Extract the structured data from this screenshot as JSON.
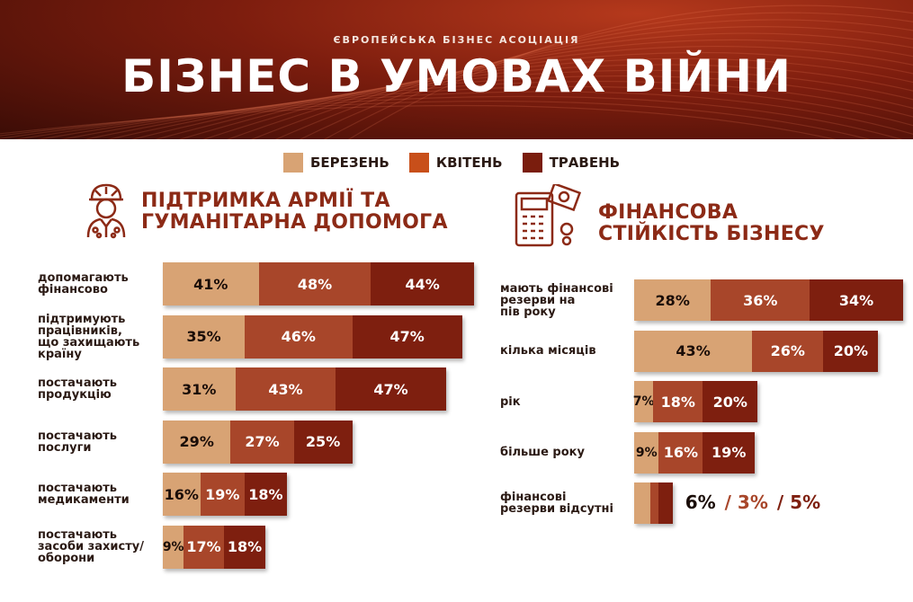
{
  "header": {
    "organization": "ЄВРОПЕЙСЬКА БІЗНЕС АСОЦІАЦІЯ",
    "title": "БІЗНЕС В УМОВАХ ВІЙНИ"
  },
  "legend": [
    {
      "label": "БЕРЕЗЕНЬ",
      "color": "#d8a374"
    },
    {
      "label": "КВІТЕНЬ",
      "color": "#c84f1a"
    },
    {
      "label": "ТРАВЕНЬ",
      "color": "#7a1d0d"
    }
  ],
  "colors": {
    "march": "#d8a374",
    "april": "#a8462a",
    "may": "#7e1f0f",
    "accent": "#8c2a16"
  },
  "sections": {
    "left": {
      "title_line1": "ПІДТРИМКА АРМІЇ ТА",
      "title_line2": "ГУМАНІТАРНА ДОПОМОГА",
      "icon": "soldier-icon"
    },
    "right": {
      "title_line1": "ФІНАНСОВА",
      "title_line2": "СТІЙКІСТЬ БІЗНЕСУ",
      "icon": "calculator-money-icon"
    }
  },
  "chart_data": [
    {
      "type": "bar",
      "stacked": true,
      "orientation": "horizontal",
      "title": "ПІДТРИМКА АРМІЇ ТА ГУМАНІТАРНА ДОПОМОГА",
      "series_names": [
        "БЕРЕЗЕНЬ",
        "КВІТЕНЬ",
        "ТРАВЕНЬ"
      ],
      "categories": [
        "допомагають фінансово",
        "підтримують працівників, що захищають країну",
        "постачають продукцію",
        "постачають послуги",
        "постачають медикаменти",
        "постачають засоби захисту/ оборони"
      ],
      "category_lines": [
        [
          "допомагають",
          "фінансово"
        ],
        [
          "підтримують",
          "працівників,",
          "що захищають",
          "країну"
        ],
        [
          "постачають",
          "продукцію"
        ],
        [
          "постачають",
          "послуги"
        ],
        [
          "постачають",
          "медикаменти"
        ],
        [
          "постачають",
          "засоби захисту/",
          "оборони"
        ]
      ],
      "values": [
        [
          41,
          48,
          44
        ],
        [
          35,
          46,
          47
        ],
        [
          31,
          43,
          47
        ],
        [
          29,
          27,
          25
        ],
        [
          16,
          19,
          18
        ],
        [
          9,
          17,
          18
        ]
      ],
      "labels": [
        [
          "41%",
          "48%",
          "44%"
        ],
        [
          "35%",
          "46%",
          "47%"
        ],
        [
          "31%",
          "43%",
          "47%"
        ],
        [
          "29%",
          "27%",
          "25%"
        ],
        [
          "16%",
          "19%",
          "18%"
        ],
        [
          "9%",
          "17%",
          "18%"
        ]
      ]
    },
    {
      "type": "bar",
      "stacked": true,
      "orientation": "horizontal",
      "title": "ФІНАНСОВА СТІЙКІСТЬ БІЗНЕСУ",
      "series_names": [
        "БЕРЕЗЕНЬ",
        "КВІТЕНЬ",
        "ТРАВЕНЬ"
      ],
      "categories": [
        "мають фінансові резерви на пів року",
        "кілька місяців",
        "рік",
        "більше року",
        "фінансові резерви відсутні"
      ],
      "category_lines": [
        [
          "мають фінансові",
          "резерви на",
          "пів року"
        ],
        [
          "кілька місяців"
        ],
        [
          "рік"
        ],
        [
          "більше року"
        ],
        [
          "фінансові",
          "резерви відсутні"
        ]
      ],
      "values": [
        [
          28,
          36,
          34
        ],
        [
          43,
          26,
          20
        ],
        [
          7,
          18,
          20
        ],
        [
          9,
          16,
          19
        ],
        [
          6,
          3,
          5
        ]
      ],
      "labels": [
        [
          "28%",
          "36%",
          "34%"
        ],
        [
          "43%",
          "26%",
          "20%"
        ],
        [
          "7%",
          "18%",
          "20%"
        ],
        [
          "9%",
          "16%",
          "19%"
        ],
        [
          "6%",
          "/ 3%",
          "/ 5%"
        ]
      ],
      "labels_outside_bar": [
        false,
        false,
        false,
        false,
        true
      ]
    }
  ]
}
